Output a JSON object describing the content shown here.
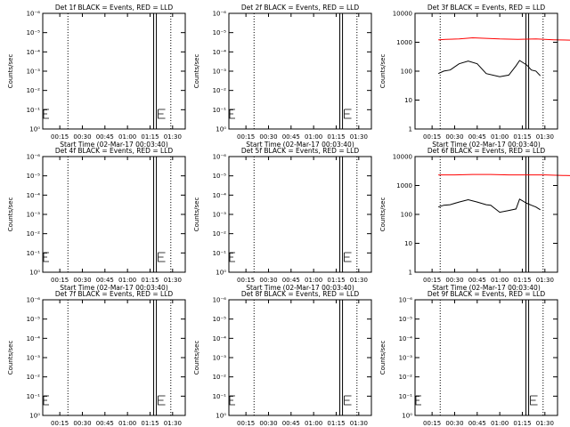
{
  "chart_data": [
    {
      "type": "line",
      "title": "Det 1f BLACK = Events, RED = LLD",
      "xlabel": "Start Time (02-Mar-17 00:03:40)",
      "ylabel": "Counts/sec",
      "x_ticks": [
        "00:15",
        "00:30",
        "00:45",
        "01:00",
        "01:15",
        "01:30"
      ],
      "y_ticks": [
        "10⁰",
        "10⁻¹",
        "10⁻²",
        "10⁻³",
        "10⁻⁴",
        "10⁻⁵",
        "10⁻⁶"
      ],
      "y_scale": "log",
      "series": []
    },
    {
      "type": "line",
      "title": "Det 2f BLACK = Events, RED = LLD",
      "xlabel": "Start Time (02-Mar-17 00:03:40)",
      "ylabel": "Counts/sec",
      "x_ticks": [
        "00:15",
        "00:30",
        "00:45",
        "01:00",
        "01:15",
        "01:30"
      ],
      "y_ticks": [
        "10⁰",
        "10⁻¹",
        "10⁻²",
        "10⁻³",
        "10⁻⁴",
        "10⁻⁵",
        "10⁻⁶"
      ],
      "y_scale": "log",
      "series": []
    },
    {
      "type": "line",
      "title": "Det 3f BLACK = Events, RED = LLD",
      "xlabel": "Start Time (02-Mar-17 00:03:40)",
      "ylabel": "Counts/sec",
      "x_ticks": [
        "00:15",
        "00:30",
        "00:45",
        "01:00",
        "01:15",
        "01:30"
      ],
      "y_ticks": [
        "1",
        "10",
        "100",
        "1000",
        "10000"
      ],
      "y_scale": "log",
      "ylim": [
        1,
        12000
      ],
      "series": [
        {
          "color": "#ff0000",
          "x": [
            0.32,
            0.4,
            0.55,
            0.7,
            1.0,
            1.2,
            1.4,
            1.6,
            1.8
          ],
          "values": [
            1400,
            1450,
            1500,
            1650,
            1500,
            1450,
            1500,
            1400,
            1350
          ]
        },
        {
          "color": "#000000",
          "x": [
            0.32,
            0.38,
            0.45,
            0.55,
            0.65,
            0.75,
            0.85,
            1.0,
            1.1,
            1.18,
            1.22,
            1.3,
            1.35,
            1.4,
            1.45
          ],
          "values": [
            90,
            110,
            120,
            200,
            250,
            200,
            90,
            70,
            80,
            170,
            260,
            180,
            120,
            110,
            75
          ]
        }
      ]
    },
    {
      "type": "line",
      "title": "Det 4f BLACK = Events, RED = LLD",
      "xlabel": "Start Time (02-Mar-17 00:03:40)",
      "ylabel": "Counts/sec",
      "x_ticks": [
        "00:15",
        "00:30",
        "00:45",
        "01:00",
        "01:15",
        "01:30"
      ],
      "y_ticks": [
        "10⁰",
        "10⁻¹",
        "10⁻²",
        "10⁻³",
        "10⁻⁴",
        "10⁻⁵",
        "10⁻⁶"
      ],
      "y_scale": "log",
      "series": []
    },
    {
      "type": "line",
      "title": "Det 5f BLACK = Events, RED = LLD",
      "xlabel": "Start Time (02-Mar-17 00:03:40)",
      "ylabel": "Counts/sec",
      "x_ticks": [
        "00:15",
        "00:30",
        "00:45",
        "01:00",
        "01:15",
        "01:30"
      ],
      "y_ticks": [
        "10⁰",
        "10⁻¹",
        "10⁻²",
        "10⁻³",
        "10⁻⁴",
        "10⁻⁵",
        "10⁻⁶"
      ],
      "y_scale": "log",
      "series": []
    },
    {
      "type": "line",
      "title": "Det 6f BLACK = Events, RED = LLD",
      "xlabel": "Start Time (02-Mar-17 00:03:40)",
      "ylabel": "Counts/sec",
      "x_ticks": [
        "00:15",
        "00:30",
        "00:45",
        "01:00",
        "01:15",
        "01:30"
      ],
      "y_ticks": [
        "1",
        "10",
        "100",
        "1000",
        "10000"
      ],
      "y_scale": "log",
      "ylim": [
        1,
        12000
      ],
      "series": [
        {
          "color": "#ff0000",
          "x": [
            0.32,
            0.5,
            0.7,
            0.9,
            1.1,
            1.3,
            1.5,
            1.7,
            1.9
          ],
          "values": [
            2700,
            2700,
            2800,
            2800,
            2700,
            2700,
            2700,
            2600,
            2500
          ]
        },
        {
          "color": "#000000",
          "x": [
            0.32,
            0.38,
            0.45,
            0.55,
            0.65,
            0.75,
            0.85,
            0.9,
            1.0,
            1.1,
            1.18,
            1.22,
            1.3,
            1.35,
            1.4,
            1.45
          ],
          "values": [
            200,
            230,
            240,
            300,
            360,
            300,
            240,
            230,
            130,
            150,
            170,
            380,
            270,
            230,
            200,
            160
          ]
        }
      ]
    },
    {
      "type": "line",
      "title": "Det 7f BLACK = Events, RED = LLD",
      "xlabel": "Start Time (02-Mar-17 00:03:40)",
      "ylabel": "Counts/sec",
      "x_ticks": [
        "00:15",
        "00:30",
        "00:45",
        "01:00",
        "01:15",
        "01:30"
      ],
      "y_ticks": [
        "10⁰",
        "10⁻¹",
        "10⁻²",
        "10⁻³",
        "10⁻⁴",
        "10⁻⁵",
        "10⁻⁶"
      ],
      "y_scale": "log",
      "series": []
    },
    {
      "type": "line",
      "title": "Det 8f BLACK = Events, RED = LLD",
      "xlabel": "Start Time (02-Mar-17 00:03:40)",
      "ylabel": "Counts/sec",
      "x_ticks": [
        "00:15",
        "00:30",
        "00:45",
        "01:00",
        "01:15",
        "01:30"
      ],
      "y_ticks": [
        "10⁰",
        "10⁻¹",
        "10⁻²",
        "10⁻³",
        "10⁻⁴",
        "10⁻⁵",
        "10⁻⁶"
      ],
      "y_scale": "log",
      "series": []
    },
    {
      "type": "line",
      "title": "Det 9f BLACK = Events, RED = LLD",
      "xlabel": "Start Time (02-Mar-17 00:03:40)",
      "ylabel": "Counts/sec",
      "x_ticks": [
        "00:15",
        "00:30",
        "00:45",
        "01:00",
        "01:15",
        "01:30"
      ],
      "y_ticks": [
        "10⁰",
        "10⁻¹",
        "10⁻²",
        "10⁻³",
        "10⁻⁴",
        "10⁻⁵",
        "10⁻⁶"
      ],
      "y_scale": "log",
      "series": []
    }
  ]
}
